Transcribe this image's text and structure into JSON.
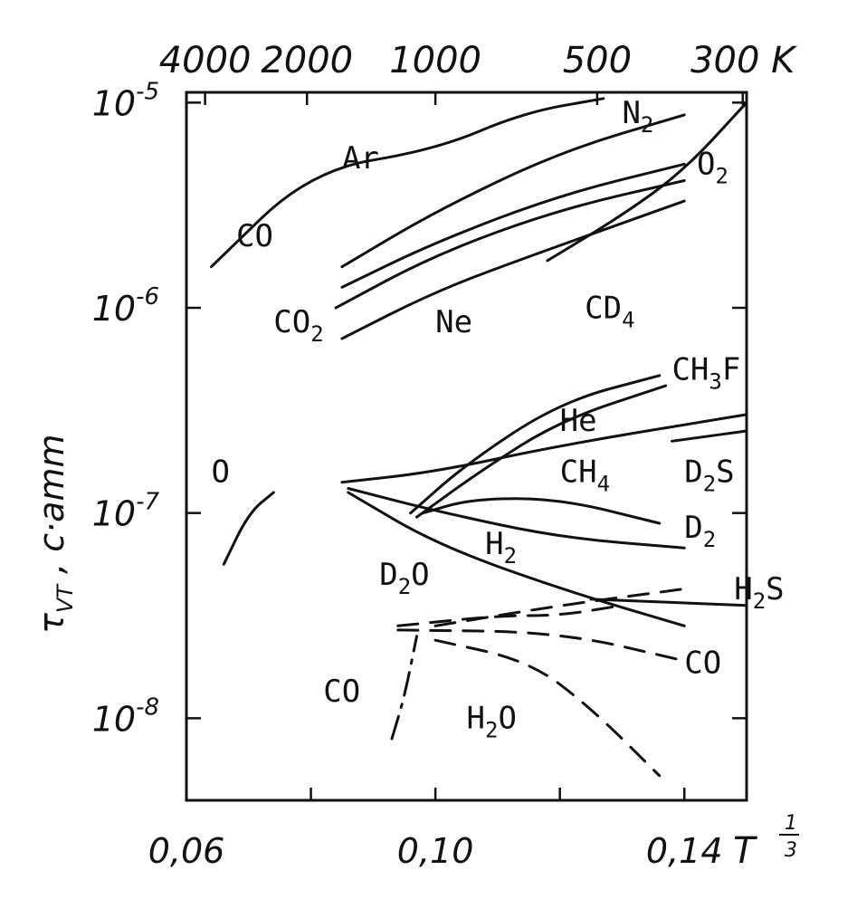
{
  "chart_data": {
    "type": "line",
    "title": "",
    "xlabel": "T^-1/3",
    "xlabel_main": "T",
    "xlabel_exp_num": "1",
    "xlabel_exp_den": "3",
    "ylabel": "τ_VT , c·amm",
    "ylabel_main": "τ",
    "ylabel_sub": "VT",
    "ylabel_rest": " , c·amm",
    "y_scale": "log",
    "xlim": [
      0.06,
      0.15
    ],
    "ylim_log10": [
      -8.4,
      -4.95
    ],
    "x_ticks": [
      {
        "value": 0.06,
        "label": "0,06"
      },
      {
        "value": 0.08,
        "label": ""
      },
      {
        "value": 0.1,
        "label": "0,10"
      },
      {
        "value": 0.12,
        "label": ""
      },
      {
        "value": 0.14,
        "label": "0,14"
      }
    ],
    "y_ticks": [
      {
        "exp": -5,
        "base": "10",
        "power": "-5"
      },
      {
        "exp": -6,
        "base": "10",
        "power": "-6"
      },
      {
        "exp": -7,
        "base": "10",
        "power": "-7"
      },
      {
        "exp": -8,
        "base": "10",
        "power": "-8"
      }
    ],
    "top_axis": {
      "unit": "K",
      "ticks": [
        {
          "T": 4000,
          "label": "4000"
        },
        {
          "T": 2000,
          "label": "2000"
        },
        {
          "T": 1000,
          "label": "1000"
        },
        {
          "T": 500,
          "label": "500"
        },
        {
          "T": 300,
          "label": "300 K"
        }
      ]
    },
    "grid": false,
    "series": [
      {
        "name": "Ar",
        "style": "solid",
        "points": [
          [
            0.064,
            -5.8
          ],
          [
            0.08,
            -5.33
          ],
          [
            0.1,
            -5.23
          ],
          [
            0.114,
            -5.05
          ],
          [
            0.127,
            -4.98
          ]
        ]
      },
      {
        "name": "N2",
        "style": "solid",
        "points": [
          [
            0.085,
            -5.8
          ],
          [
            0.1,
            -5.53
          ],
          [
            0.12,
            -5.24
          ],
          [
            0.14,
            -5.06
          ]
        ]
      },
      {
        "name": "O2",
        "style": "solid",
        "points": [
          [
            0.118,
            -5.77
          ],
          [
            0.13,
            -5.55
          ],
          [
            0.14,
            -5.33
          ],
          [
            0.15,
            -5.0
          ]
        ]
      },
      {
        "name": "CO",
        "style": "solid",
        "points": [
          [
            0.085,
            -5.9
          ],
          [
            0.1,
            -5.68
          ],
          [
            0.12,
            -5.45
          ],
          [
            0.14,
            -5.3
          ]
        ]
      },
      {
        "name": "CO2",
        "style": "solid",
        "points": [
          [
            0.084,
            -6.0
          ],
          [
            0.1,
            -5.74
          ],
          [
            0.12,
            -5.52
          ],
          [
            0.14,
            -5.38
          ]
        ]
      },
      {
        "name": "Ne",
        "style": "solid",
        "points": [
          [
            0.085,
            -6.15
          ],
          [
            0.1,
            -5.92
          ],
          [
            0.115,
            -5.75
          ],
          [
            0.14,
            -5.48
          ]
        ]
      },
      {
        "name": "CD4",
        "style": "solid",
        "points": [
          [
            0.096,
            -7.0
          ],
          [
            0.105,
            -6.76
          ],
          [
            0.12,
            -6.46
          ],
          [
            0.136,
            -6.33
          ]
        ]
      },
      {
        "name": "CH3F",
        "style": "solid",
        "points": [
          [
            0.097,
            -7.02
          ],
          [
            0.107,
            -6.8
          ],
          [
            0.12,
            -6.55
          ],
          [
            0.137,
            -6.38
          ]
        ]
      },
      {
        "name": "He",
        "style": "solid",
        "points": [
          [
            0.085,
            -6.85
          ],
          [
            0.1,
            -6.8
          ],
          [
            0.12,
            -6.67
          ],
          [
            0.15,
            -6.52
          ]
        ]
      },
      {
        "name": "D2S",
        "style": "solid",
        "points": [
          [
            0.138,
            -6.65
          ],
          [
            0.15,
            -6.6
          ]
        ]
      },
      {
        "name": "CH4",
        "style": "solid",
        "points": [
          [
            0.098,
            -7.0
          ],
          [
            0.106,
            -6.93
          ],
          [
            0.12,
            -6.93
          ],
          [
            0.136,
            -7.05
          ]
        ]
      },
      {
        "name": "D2",
        "style": "solid",
        "points": [
          [
            0.086,
            -6.88
          ],
          [
            0.1,
            -6.99
          ],
          [
            0.12,
            -7.12
          ],
          [
            0.14,
            -7.17
          ]
        ]
      },
      {
        "name": "H2",
        "style": "solid",
        "points": [
          [
            0.086,
            -6.9
          ],
          [
            0.1,
            -7.15
          ],
          [
            0.12,
            -7.37
          ],
          [
            0.14,
            -7.55
          ]
        ]
      },
      {
        "name": "H2S",
        "style": "solid",
        "points": [
          [
            0.125,
            -7.42
          ],
          [
            0.15,
            -7.45
          ]
        ]
      },
      {
        "name": "D2O",
        "style": "dashed",
        "points": [
          [
            0.1,
            -7.55
          ],
          [
            0.12,
            -7.45
          ],
          [
            0.14,
            -7.37
          ]
        ]
      },
      {
        "name": "CO",
        "style": "dashed",
        "points": [
          [
            0.094,
            -7.55
          ],
          [
            0.11,
            -7.5
          ],
          [
            0.12,
            -7.5
          ],
          [
            0.13,
            -7.45
          ]
        ]
      },
      {
        "name": "CO",
        "style": "dashed",
        "points": [
          [
            0.094,
            -7.57
          ],
          [
            0.12,
            -7.58
          ],
          [
            0.14,
            -7.72
          ]
        ]
      },
      {
        "name": "H2O",
        "style": "dashed",
        "points": [
          [
            0.1,
            -7.62
          ],
          [
            0.115,
            -7.72
          ],
          [
            0.125,
            -7.95
          ],
          [
            0.136,
            -8.28
          ]
        ]
      },
      {
        "name": "CO",
        "style": "dashdot",
        "points": [
          [
            0.093,
            -8.1
          ],
          [
            0.095,
            -7.9
          ],
          [
            0.097,
            -7.6
          ]
        ]
      },
      {
        "name": "O",
        "style": "solid",
        "points": [
          [
            0.066,
            -7.25
          ],
          [
            0.07,
            -7.0
          ],
          [
            0.074,
            -6.9
          ]
        ]
      }
    ],
    "annotations": [
      {
        "text": "Ar",
        "x": 0.085,
        "y": -5.32
      },
      {
        "text": "N2",
        "main": "N",
        "sub": "2",
        "x": 0.13,
        "y": -5.1
      },
      {
        "text": "O2",
        "main": "O",
        "sub": "2",
        "x": 0.142,
        "y": -5.35
      },
      {
        "text": "CO",
        "x": 0.068,
        "y": -5.7
      },
      {
        "text": "CO2",
        "main": "CO",
        "sub": "2",
        "x": 0.074,
        "y": -6.12
      },
      {
        "text": "Ne",
        "x": 0.1,
        "y": -6.12
      },
      {
        "text": "CD4",
        "main": "CD",
        "sub": "4",
        "x": 0.124,
        "y": -6.05
      },
      {
        "text": "CH3F",
        "main": "CH",
        "sub": "3",
        "suffix": "F",
        "x": 0.138,
        "y": -6.35
      },
      {
        "text": "He",
        "x": 0.12,
        "y": -6.6
      },
      {
        "text": "CH4",
        "main": "CH",
        "sub": "4",
        "x": 0.12,
        "y": -6.85
      },
      {
        "text": "D2S",
        "main": "D",
        "sub": "2",
        "suffix": "S",
        "x": 0.14,
        "y": -6.85
      },
      {
        "text": "O",
        "x": 0.064,
        "y": -6.85
      },
      {
        "text": "H2",
        "main": "H",
        "sub": "2",
        "x": 0.108,
        "y": -7.2
      },
      {
        "text": "D2",
        "main": "D",
        "sub": "2",
        "x": 0.14,
        "y": -7.12
      },
      {
        "text": "D2O",
        "main": "D",
        "sub": "2",
        "suffix": "O",
        "x": 0.091,
        "y": -7.35
      },
      {
        "text": "H2S",
        "main": "H",
        "sub": "2",
        "suffix": "S",
        "x": 0.148,
        "y": -7.42
      },
      {
        "text": "CO",
        "x": 0.14,
        "y": -7.78
      },
      {
        "text": "CO",
        "x": 0.082,
        "y": -7.92
      },
      {
        "text": "H2O",
        "main": "H",
        "sub": "2",
        "suffix": "O",
        "x": 0.105,
        "y": -8.05
      }
    ]
  }
}
